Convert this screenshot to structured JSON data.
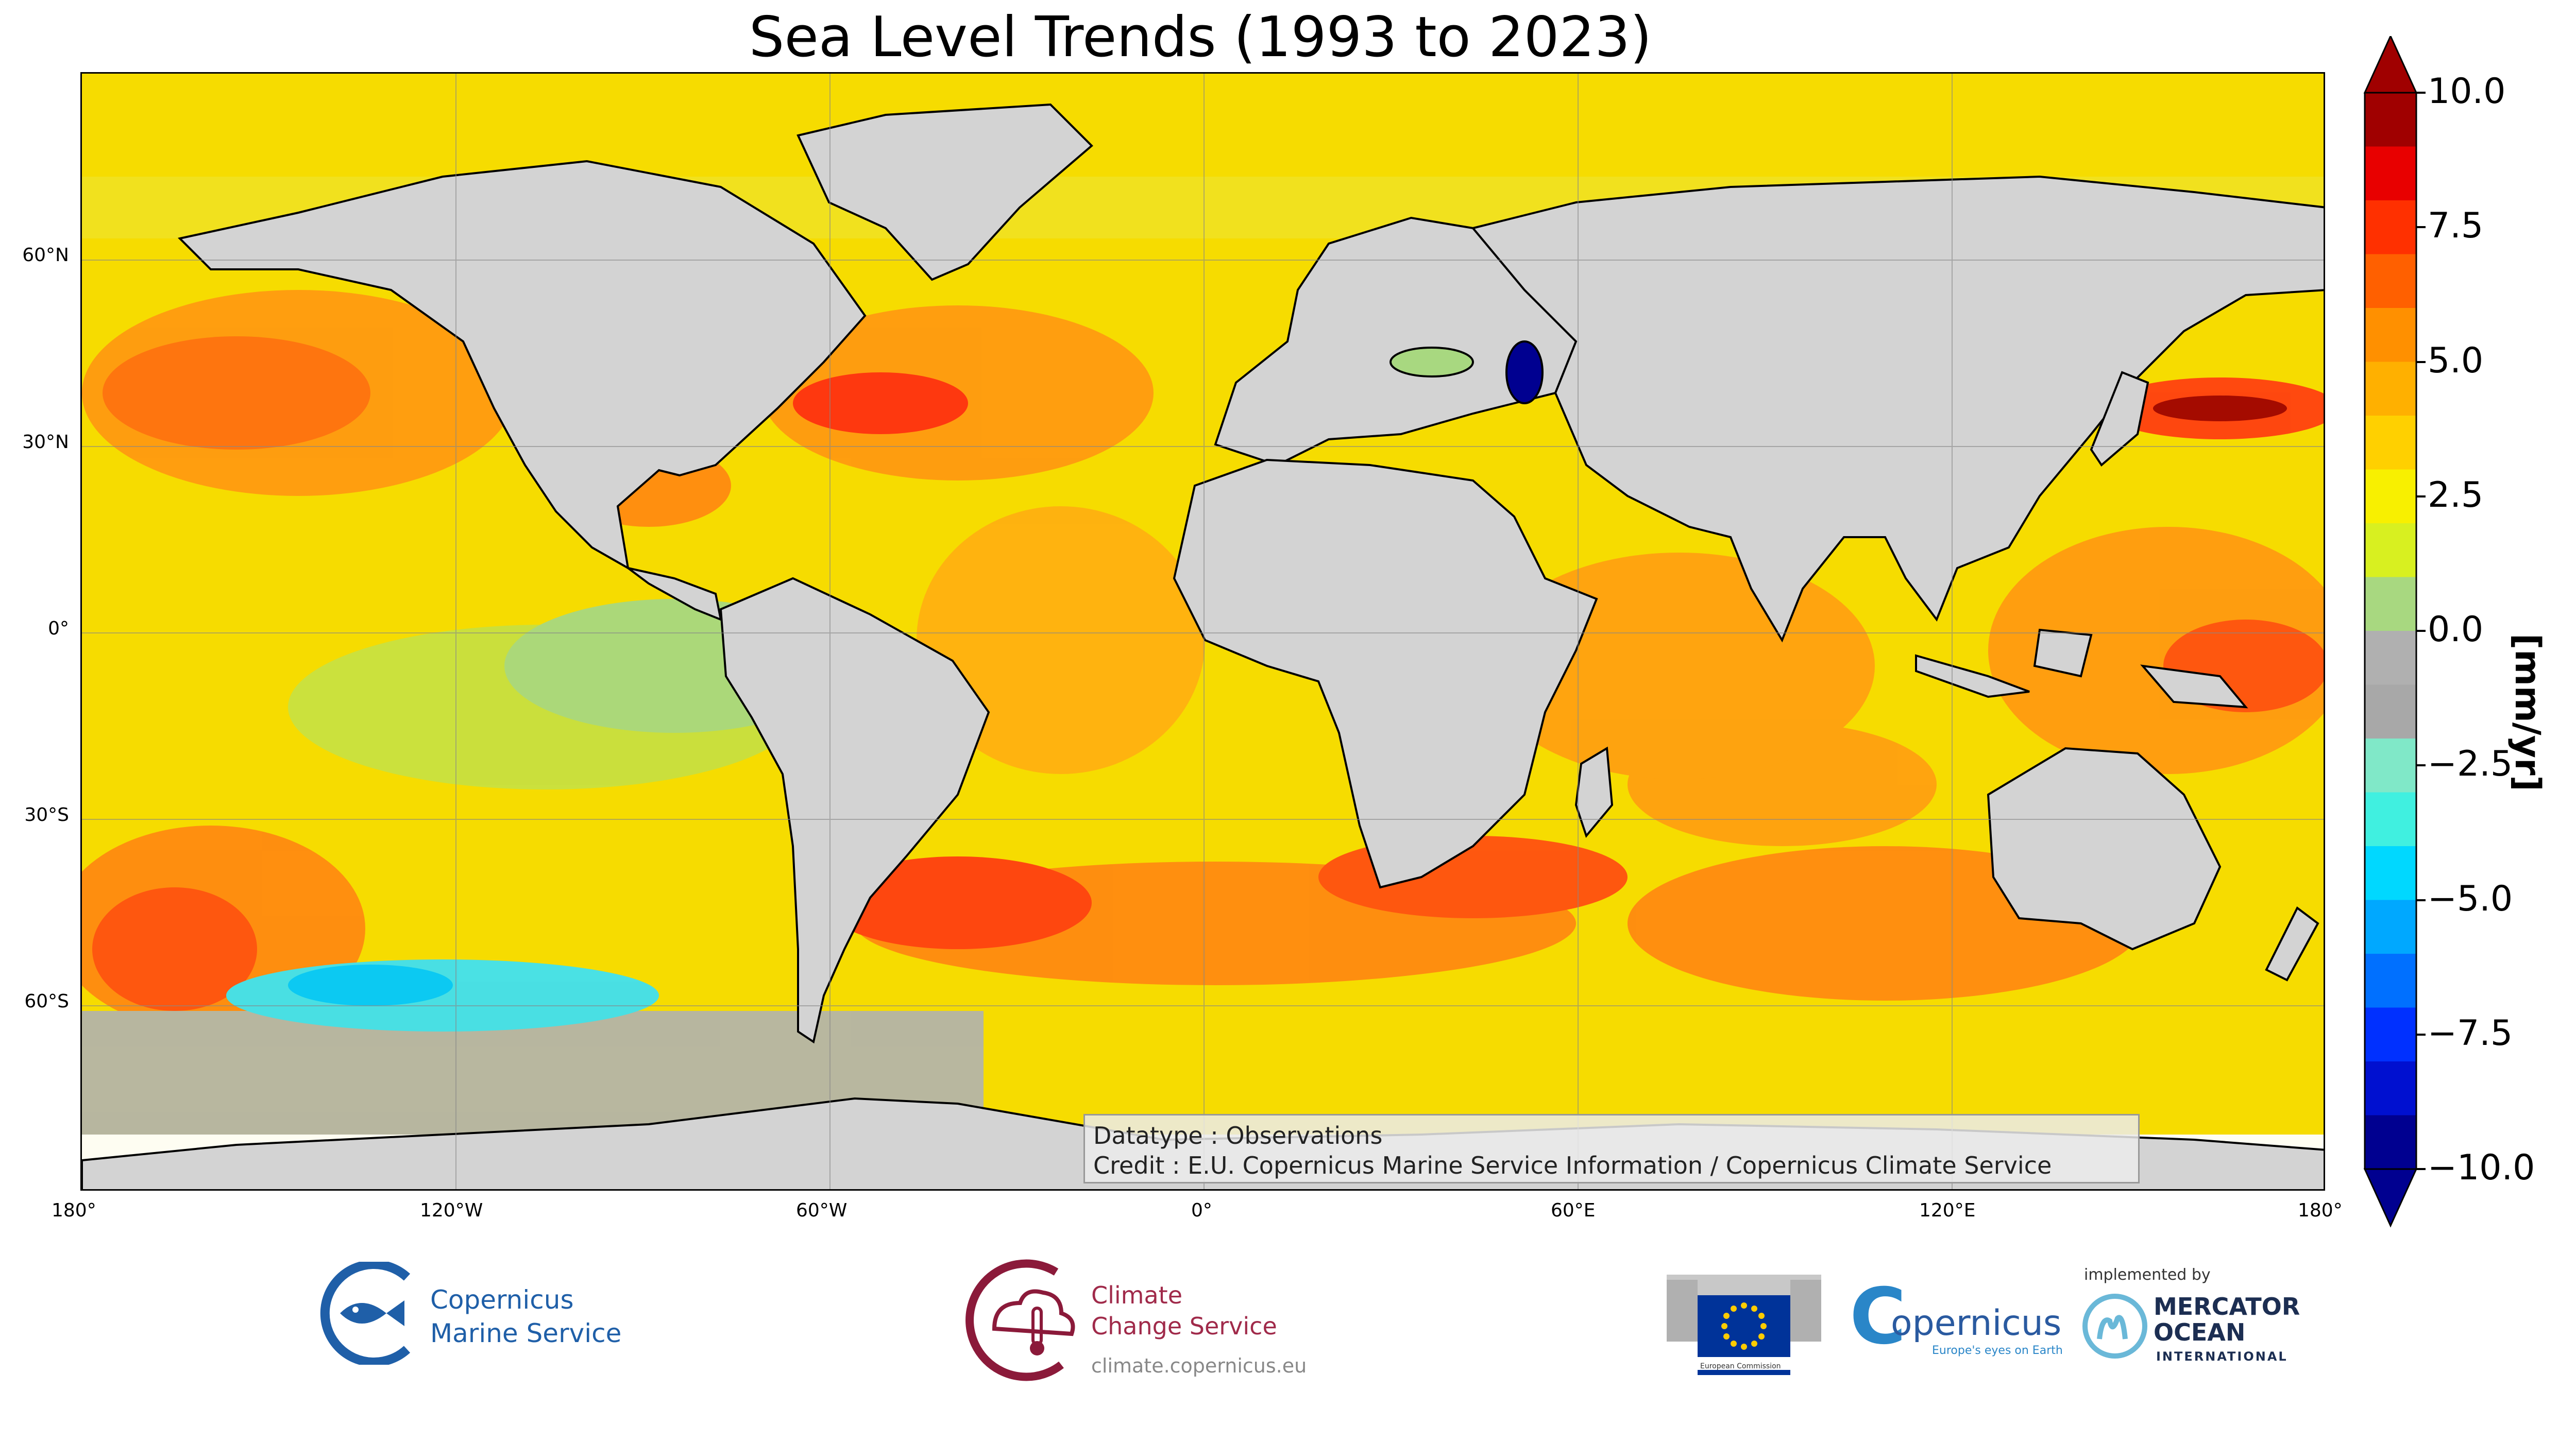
{
  "title": "Sea Level Trends (1993 to 2023)",
  "map": {
    "lon_ticks": [
      "180°",
      "120°W",
      "60°W",
      "0°",
      "60°E",
      "120°E",
      "180°"
    ],
    "lat_ticks": [
      "60°N",
      "30°N",
      "0°",
      "30°S",
      "60°S"
    ],
    "land_color": "#d3d3d3",
    "ocean_base_color": "#f5d800",
    "gridlines": true
  },
  "info": {
    "datatype": "Datatype : Observations",
    "credit": "Credit : E.U. Copernicus Marine Service Information / Copernicus Climate Service"
  },
  "colorbar": {
    "label": "[mm/yr]",
    "ticks": [
      "10.0",
      "7.5",
      "5.0",
      "2.5",
      "0.0",
      "−2.5",
      "−5.0",
      "−7.5",
      "−10.0"
    ],
    "range": [
      -10,
      10
    ],
    "colors": [
      "#000090",
      "#0010d0",
      "#0030ff",
      "#0070ff",
      "#00a8ff",
      "#00d8ff",
      "#40f0e0",
      "#80e8c8",
      "#a8a8a8",
      "#b0b0b0",
      "#a8d880",
      "#d8f020",
      "#f8f000",
      "#ffd000",
      "#ffb000",
      "#ff9000",
      "#ff6000",
      "#ff3000",
      "#e80000",
      "#a00000"
    ]
  },
  "logos": {
    "cmems_line1": "Copernicus",
    "cmems_line2": "Marine Service",
    "c3s_line1": "Climate",
    "c3s_line2": "Change Service",
    "c3s_url": "climate.copernicus.eu",
    "ec_small": "European Commission",
    "copernicus_word": "opernicus",
    "copernicus_c": "C",
    "copernicus_tagline": "Europe's eyes on Earth",
    "implemented_by": "implemented by",
    "mercator_line1": "MERCATOR",
    "mercator_line2": "OCEAN",
    "mercator_line3": "INTERNATIONAL"
  }
}
